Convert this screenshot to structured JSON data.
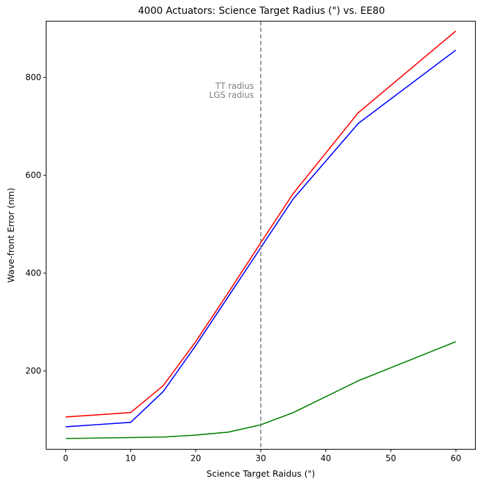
{
  "chart_data": {
    "type": "line",
    "title": "4000 Actuators: Science Target Radius (\") vs. EE80",
    "xlabel": "Science Target Raidus (\")",
    "ylabel": "Wave-front Error (nm)",
    "xlim": [
      -3,
      63
    ],
    "ylim": [
      40,
      915
    ],
    "xticks": [
      0,
      10,
      20,
      30,
      40,
      50,
      60
    ],
    "yticks": [
      200,
      400,
      600,
      800
    ],
    "grid": false,
    "x": [
      0,
      10,
      15,
      20,
      25,
      30,
      35,
      45,
      60
    ],
    "series": [
      {
        "color": "#ff0000",
        "values": [
          106,
          115,
          170,
          260,
          360,
          462,
          563,
          728,
          895
        ]
      },
      {
        "color": "#0000ff",
        "values": [
          86,
          95,
          158,
          252,
          352,
          452,
          552,
          706,
          856
        ]
      },
      {
        "color": "#008000",
        "values": [
          62,
          64,
          65,
          69,
          75,
          90,
          115,
          180,
          260
        ]
      }
    ],
    "vline": {
      "x": 30,
      "color": "#7f7f7f",
      "style": "dashed"
    },
    "annotations": [
      "TT radius",
      "LGS radius"
    ]
  }
}
